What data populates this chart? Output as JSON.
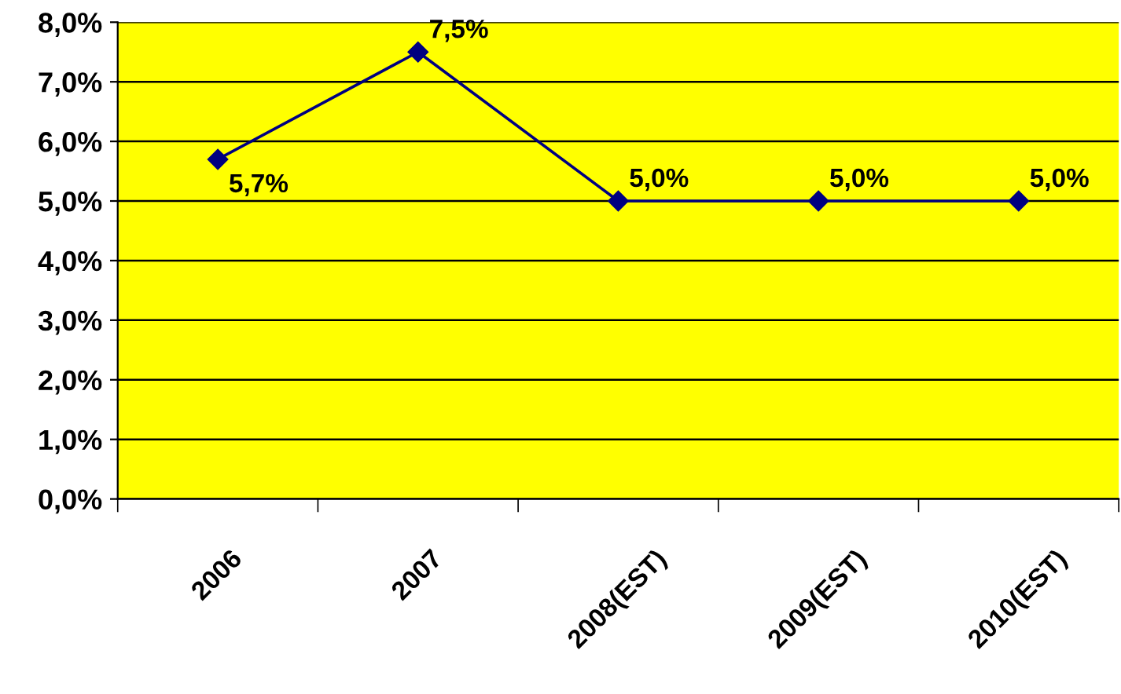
{
  "chart_data": {
    "type": "line",
    "categories": [
      "2006",
      "2007",
      "2008(EST)",
      "2009(EST)",
      "2010(EST)"
    ],
    "series": [
      {
        "color": "#000080",
        "values": [
          5.7,
          7.5,
          5.0,
          5.0,
          5.0
        ],
        "value_labels": [
          "5,7%",
          "7,5%",
          "5,0%",
          "5,0%",
          "5,0%"
        ]
      }
    ],
    "ylim": [
      0,
      8
    ],
    "yticks": [
      {
        "value": 0,
        "label": "0,0%"
      },
      {
        "value": 1,
        "label": "1,0%"
      },
      {
        "value": 2,
        "label": "2,0%"
      },
      {
        "value": 3,
        "label": "3,0%"
      },
      {
        "value": 4,
        "label": "4,0%"
      },
      {
        "value": 5,
        "label": "5,0%"
      },
      {
        "value": 6,
        "label": "6,0%"
      },
      {
        "value": 7,
        "label": "7,0%"
      },
      {
        "value": 8,
        "label": "8,0%"
      }
    ],
    "grid": "y",
    "legend": false,
    "marker": "diamond",
    "line_style": "solid"
  }
}
